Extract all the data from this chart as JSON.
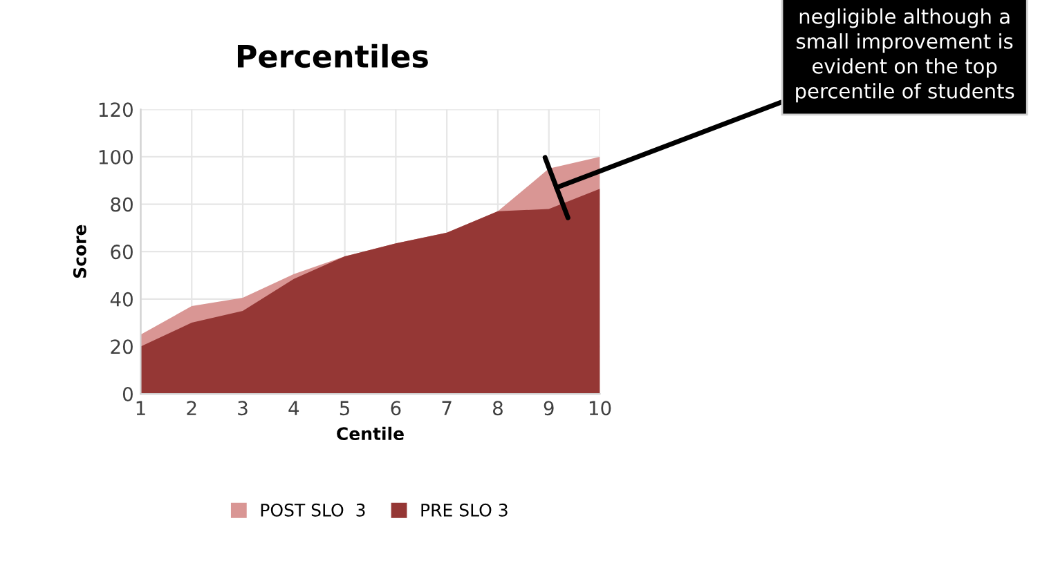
{
  "chart_data": {
    "type": "area",
    "title": "Percentiles",
    "xlabel": "Centile",
    "ylabel": "Score",
    "x": [
      1,
      2,
      3,
      4,
      5,
      6,
      7,
      8,
      9,
      10
    ],
    "series": [
      {
        "name": "POST SLO  3",
        "color": "#d99694",
        "values": [
          25,
          37,
          40.5,
          50.5,
          58,
          63.5,
          68,
          77,
          95,
          100
        ]
      },
      {
        "name": "PRE SLO 3",
        "color": "#953735",
        "values": [
          20,
          30,
          35,
          48.5,
          58,
          63.5,
          68,
          77,
          78,
          86.5
        ]
      }
    ],
    "xlim": [
      1,
      10
    ],
    "xticks": [
      1,
      2,
      3,
      4,
      5,
      6,
      7,
      8,
      9,
      10
    ],
    "ylim": [
      0,
      120
    ],
    "yticks": [
      0,
      20,
      40,
      60,
      80,
      100,
      120
    ],
    "grid": true,
    "legend": "bottom",
    "annotations": [
      {
        "text": "negligible although a\nsmall improvement is\nevident on the top\npercentile of students",
        "x": 9.15,
        "y": 87
      }
    ]
  }
}
